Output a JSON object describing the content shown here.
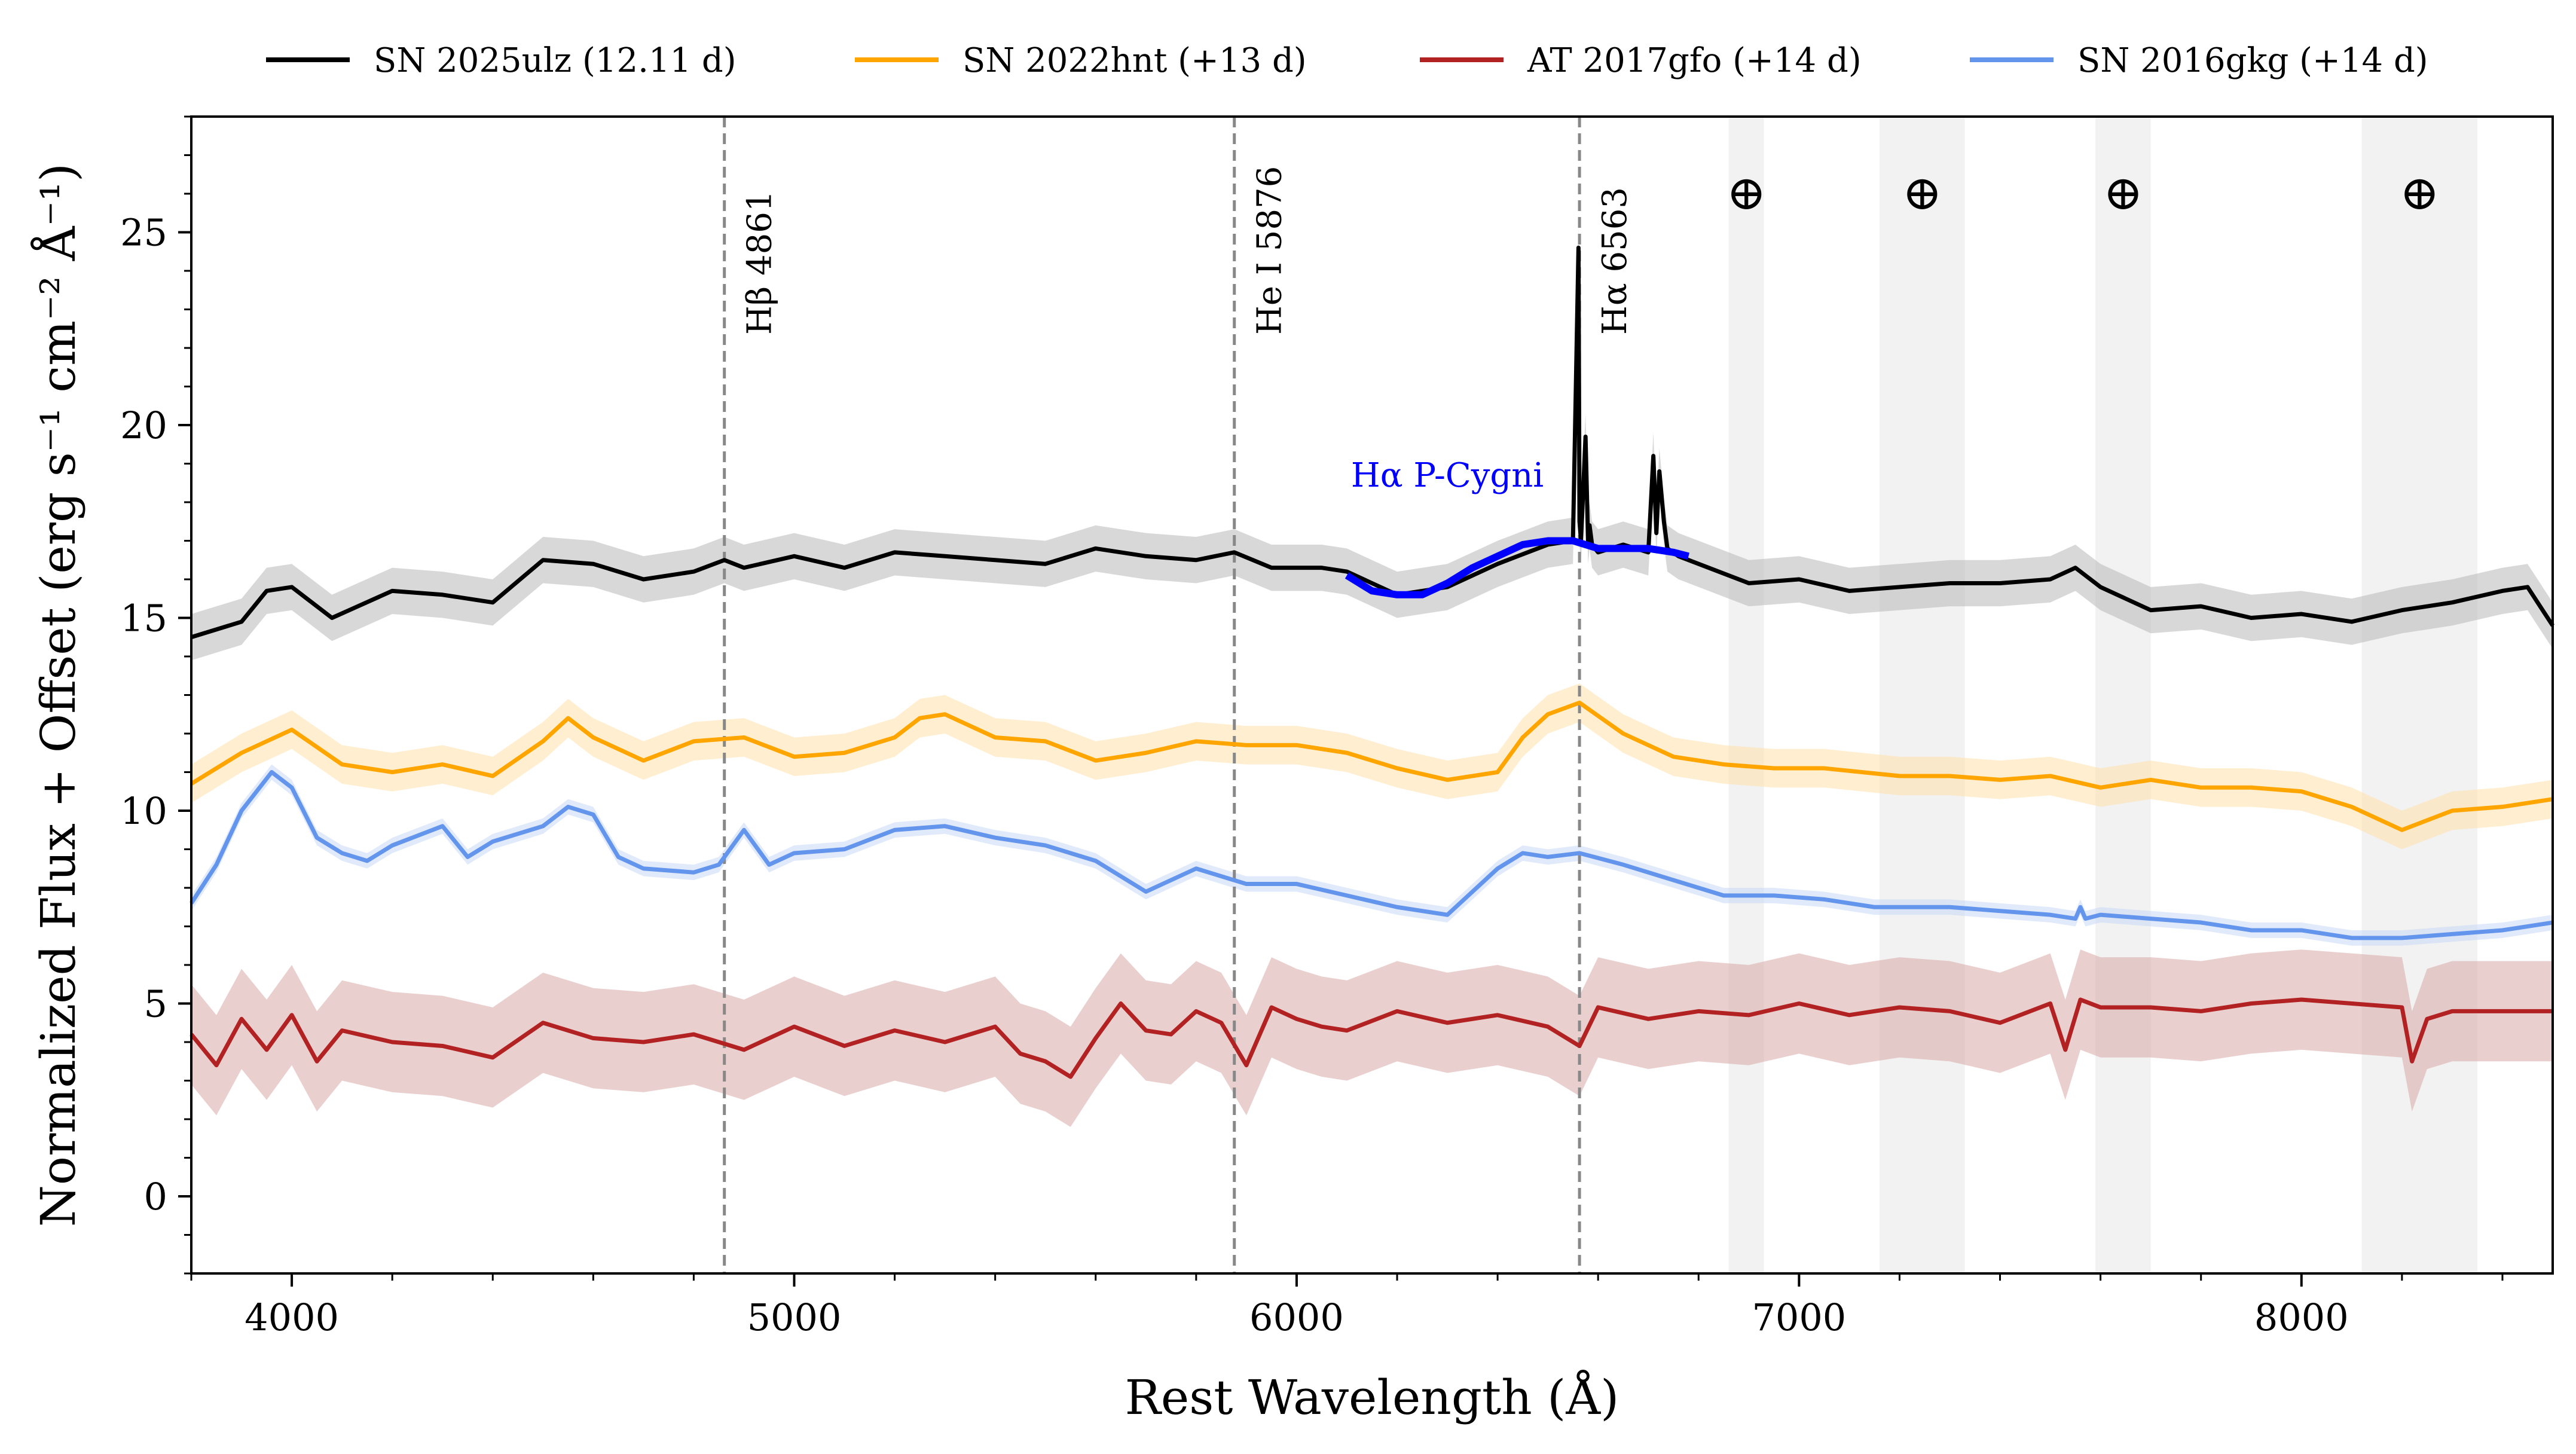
{
  "chart_data": {
    "type": "line",
    "xlabel": "Rest Wavelength (Å)",
    "ylabel": "Normalized Flux + Offset (erg s⁻¹ cm⁻² Å⁻¹)",
    "xlim": [
      3800,
      8500
    ],
    "ylim": [
      -2,
      28
    ],
    "xticks": [
      4000,
      5000,
      6000,
      7000,
      8000
    ],
    "yticks": [
      0,
      5,
      10,
      15,
      20,
      25
    ],
    "grid": false,
    "legend_position": "top, outside plot, single row",
    "legend": [
      {
        "label": "SN 2025ulz (12.11 d)",
        "color": "#000000"
      },
      {
        "label": "SN 2022hnt (+13 d)",
        "color": "#ffa500"
      },
      {
        "label": "AT 2017gfo (+14 d)",
        "color": "#b22222"
      },
      {
        "label": "SN 2016gkg (+14 d)",
        "color": "#6495ed"
      }
    ],
    "series": [
      {
        "name": "SN 2025ulz (12.11 d)",
        "color": "#000000",
        "x": [
          3800,
          3900,
          3950,
          4000,
          4080,
          4200,
          4300,
          4400,
          4500,
          4600,
          4700,
          4800,
          4861,
          4900,
          5000,
          5100,
          5200,
          5300,
          5400,
          5500,
          5600,
          5700,
          5800,
          5876,
          5950,
          6050,
          6100,
          6200,
          6300,
          6400,
          6500,
          6550,
          6561,
          6563,
          6566,
          6575,
          6580,
          6583,
          6588,
          6600,
          6650,
          6700,
          6710,
          6716,
          6722,
          6731,
          6738,
          6760,
          6800,
          6900,
          7000,
          7100,
          7200,
          7300,
          7400,
          7500,
          7550,
          7600,
          7700,
          7800,
          7900,
          8000,
          8100,
          8200,
          8300,
          8400,
          8450,
          8500
        ],
        "y": [
          14.5,
          14.9,
          15.7,
          15.8,
          15.0,
          15.7,
          15.6,
          15.4,
          16.5,
          16.4,
          16.0,
          16.2,
          16.5,
          16.3,
          16.6,
          16.3,
          16.7,
          16.6,
          16.5,
          16.4,
          16.8,
          16.6,
          16.5,
          16.7,
          16.3,
          16.3,
          16.2,
          15.6,
          15.8,
          16.4,
          16.9,
          17.0,
          24.6,
          17.5,
          17.0,
          19.7,
          17.0,
          17.4,
          16.9,
          16.7,
          16.9,
          16.7,
          19.2,
          17.2,
          18.8,
          17.5,
          16.8,
          16.6,
          16.4,
          15.9,
          16.0,
          15.7,
          15.8,
          15.9,
          15.9,
          16.0,
          16.3,
          15.8,
          15.2,
          15.3,
          15.0,
          15.1,
          14.9,
          15.2,
          15.4,
          15.7,
          15.8,
          14.8
        ]
      },
      {
        "name": "Hα P-Cygni",
        "color": "#0000ff",
        "x": [
          6100,
          6150,
          6200,
          6250,
          6300,
          6350,
          6400,
          6450,
          6500,
          6550,
          6600,
          6650,
          6700,
          6750,
          6780
        ],
        "y": [
          16.1,
          15.7,
          15.6,
          15.6,
          15.9,
          16.3,
          16.6,
          16.9,
          17.0,
          17.0,
          16.8,
          16.8,
          16.8,
          16.7,
          16.6
        ]
      },
      {
        "name": "SN 2022hnt (+13 d)",
        "color": "#ffa500",
        "x": [
          3800,
          3900,
          4000,
          4100,
          4200,
          4300,
          4400,
          4500,
          4550,
          4600,
          4700,
          4800,
          4900,
          5000,
          5100,
          5200,
          5250,
          5300,
          5400,
          5500,
          5600,
          5700,
          5800,
          5900,
          6000,
          6100,
          6200,
          6300,
          6400,
          6450,
          6500,
          6563,
          6650,
          6750,
          6850,
          6950,
          7050,
          7200,
          7300,
          7400,
          7500,
          7600,
          7700,
          7800,
          7900,
          8000,
          8100,
          8200,
          8300,
          8400,
          8500
        ],
        "y": [
          10.7,
          11.5,
          12.1,
          11.2,
          11.0,
          11.2,
          10.9,
          11.8,
          12.4,
          11.9,
          11.3,
          11.8,
          11.9,
          11.4,
          11.5,
          11.9,
          12.4,
          12.5,
          11.9,
          11.8,
          11.3,
          11.5,
          11.8,
          11.7,
          11.7,
          11.5,
          11.1,
          10.8,
          11.0,
          11.9,
          12.5,
          12.8,
          12.0,
          11.4,
          11.2,
          11.1,
          11.1,
          10.9,
          10.9,
          10.8,
          10.9,
          10.6,
          10.8,
          10.6,
          10.6,
          10.5,
          10.1,
          9.5,
          10.0,
          10.1,
          10.3
        ]
      },
      {
        "name": "SN 2016gkg (+14 d)",
        "color": "#6495ed",
        "x": [
          3800,
          3850,
          3900,
          3960,
          4000,
          4050,
          4100,
          4150,
          4200,
          4300,
          4350,
          4400,
          4500,
          4550,
          4600,
          4650,
          4700,
          4800,
          4850,
          4900,
          4950,
          5000,
          5100,
          5200,
          5300,
          5400,
          5500,
          5600,
          5700,
          5800,
          5900,
          6000,
          6100,
          6200,
          6300,
          6350,
          6400,
          6450,
          6500,
          6563,
          6650,
          6750,
          6850,
          6950,
          7050,
          7150,
          7300,
          7500,
          7550,
          7560,
          7570,
          7600,
          7700,
          7800,
          7900,
          8000,
          8100,
          8200,
          8300,
          8400,
          8500
        ],
        "y": [
          7.6,
          8.6,
          10.0,
          11.0,
          10.6,
          9.3,
          8.9,
          8.7,
          9.1,
          9.6,
          8.8,
          9.2,
          9.6,
          10.1,
          9.9,
          8.8,
          8.5,
          8.4,
          8.6,
          9.5,
          8.6,
          8.9,
          9.0,
          9.5,
          9.6,
          9.3,
          9.1,
          8.7,
          7.9,
          8.5,
          8.1,
          8.1,
          7.8,
          7.5,
          7.3,
          7.9,
          8.5,
          8.9,
          8.8,
          8.9,
          8.6,
          8.2,
          7.8,
          7.8,
          7.7,
          7.5,
          7.5,
          7.3,
          7.2,
          7.5,
          7.2,
          7.3,
          7.2,
          7.1,
          6.9,
          6.9,
          6.7,
          6.7,
          6.8,
          6.9,
          7.1
        ]
      },
      {
        "name": "AT 2017gfo (+14 d)",
        "color": "#b22222",
        "x": [
          3800,
          3850,
          3900,
          3950,
          4000,
          4050,
          4100,
          4200,
          4300,
          4400,
          4500,
          4600,
          4700,
          4800,
          4900,
          5000,
          5100,
          5200,
          5300,
          5400,
          5450,
          5500,
          5550,
          5600,
          5650,
          5700,
          5750,
          5800,
          5850,
          5900,
          5950,
          6000,
          6050,
          6100,
          6200,
          6300,
          6400,
          6500,
          6563,
          6600,
          6700,
          6800,
          6900,
          7000,
          7100,
          7200,
          7300,
          7400,
          7500,
          7530,
          7560,
          7600,
          7700,
          7800,
          7900,
          8000,
          8100,
          8200,
          8220,
          8250,
          8300,
          8400,
          8500
        ],
        "y": [
          4.2,
          3.4,
          4.6,
          3.8,
          4.7,
          3.5,
          4.3,
          4.0,
          3.9,
          3.6,
          4.5,
          4.1,
          4.0,
          4.2,
          3.8,
          4.4,
          3.9,
          4.3,
          4.0,
          4.4,
          3.7,
          3.5,
          3.1,
          4.1,
          5.0,
          4.3,
          4.2,
          4.8,
          4.5,
          3.4,
          4.9,
          4.6,
          4.4,
          4.3,
          4.8,
          4.5,
          4.7,
          4.4,
          3.9,
          4.9,
          4.6,
          4.8,
          4.7,
          5.0,
          4.7,
          4.9,
          4.8,
          4.5,
          5.0,
          3.8,
          5.1,
          4.9,
          4.9,
          4.8,
          5.0,
          5.1,
          5.0,
          4.9,
          3.5,
          4.6,
          4.8,
          4.8,
          4.8
        ]
      }
    ],
    "shaded_bands": [
      {
        "series": "SN 2025ulz (12.11 d)",
        "color": "#b8b8b8",
        "half_width": 0.6
      },
      {
        "series": "SN 2022hnt (+13 d)",
        "color": "#ffe0a8",
        "half_width": 0.5
      },
      {
        "series": "SN 2016gkg (+14 d)",
        "color": "#c9d8f5",
        "half_width": 0.2
      },
      {
        "series": "AT 2017gfo (+14 d)",
        "color": "#d9a8a8",
        "half_width": 1.3
      }
    ],
    "vertical_lines": [
      {
        "x": 4861,
        "label": "Hβ 4861"
      },
      {
        "x": 5876,
        "label": "He I 5876"
      },
      {
        "x": 6563,
        "label": "Hα 6563"
      }
    ],
    "telluric_bands": [
      {
        "x0": 6860,
        "x1": 6930
      },
      {
        "x0": 7160,
        "x1": 7330
      },
      {
        "x0": 7590,
        "x1": 7700
      },
      {
        "x0": 8120,
        "x1": 8350
      }
    ],
    "telluric_symbol": "⊕",
    "annotations": [
      {
        "text": "Hα P-Cygni",
        "color": "#0000ff",
        "x": 6300,
        "y": 18.4
      }
    ]
  }
}
